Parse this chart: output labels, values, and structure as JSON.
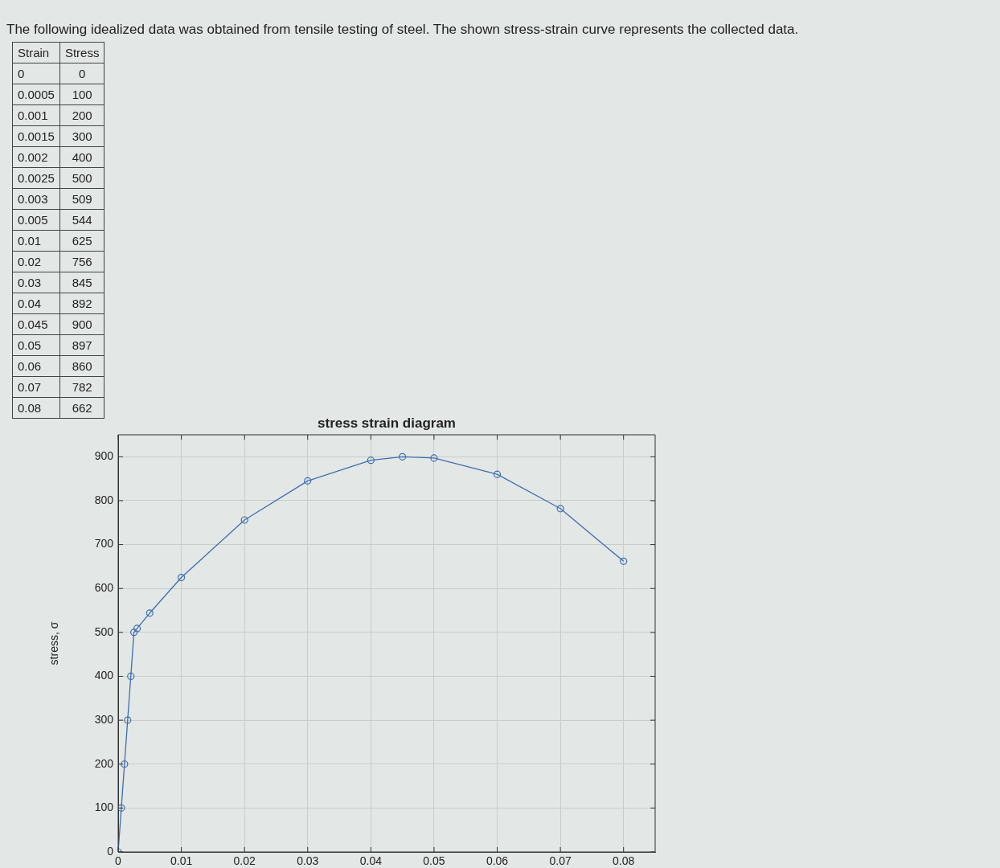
{
  "chart_data": [
    {
      "type": "other",
      "title": "The following idealized data was obtained from tensile testing of steel. The shown stress-strain curve represents the collected data.",
      "categories": [
        "Strain",
        "Stress"
      ],
      "annotations": [
        "0",
        "0",
        "0.0005",
        "100",
        "0.001",
        "200",
        "0.0015",
        "300",
        "0.002",
        "400",
        "0.0025",
        "500",
        "0.003",
        "509",
        "0.005",
        "544",
        "0.01",
        "625",
        "0.02",
        "756",
        "0.03",
        "845",
        "0.04",
        "892",
        "0.045",
        "900",
        "0.05",
        "897",
        "0.06",
        "860",
        "0.07",
        "782",
        "0.08",
        "662"
      ]
    },
    {
      "type": "line",
      "title": "stress strain diagram",
      "ylabel": "stress, σ",
      "x": [
        0,
        0.0005,
        0.001,
        0.0015,
        0.002,
        0.0025,
        0.003,
        0.005,
        0.01,
        0.02,
        0.03,
        0.04,
        0.045,
        0.05,
        0.06,
        0.07,
        0.08
      ],
      "values": [
        0,
        100,
        200,
        300,
        400,
        500,
        509,
        544,
        625,
        756,
        845,
        892,
        900,
        897,
        860,
        782,
        662
      ],
      "color": "#3d6fb0",
      "xlim": [
        0,
        0.085
      ],
      "ylim": [
        0,
        950
      ],
      "xticks": [
        0,
        0.01,
        0.02,
        0.03,
        0.04,
        0.05,
        0.06,
        0.07,
        0.08
      ],
      "yticks": [
        0,
        100,
        200,
        300,
        400,
        500,
        600,
        700,
        800,
        900
      ],
      "grid": true,
      "marker": "circle",
      "line_style": "solid",
      "legend": false
    }
  ]
}
